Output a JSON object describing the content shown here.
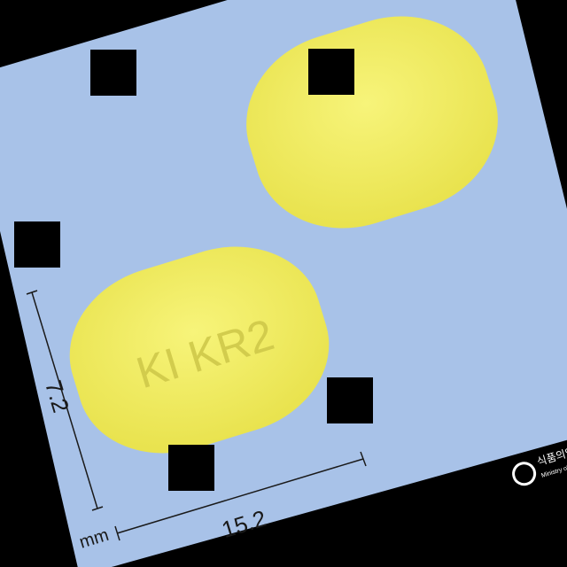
{
  "colors": {
    "background": "#000000",
    "card": "#a8c2e8",
    "pill": "#f2ee5c",
    "pill_shadow": "#d9d443",
    "ink": "#1a1a1a",
    "imprint": "#cfc94a",
    "logo": "#ffffff"
  },
  "pill_front": {
    "imprint": "KI KR2"
  },
  "dimensions": {
    "width": "15.2",
    "height": "7.2",
    "unit": "mm"
  },
  "watermark": {
    "text_ko": "식품의약품",
    "text_en": "Ministry of F"
  }
}
